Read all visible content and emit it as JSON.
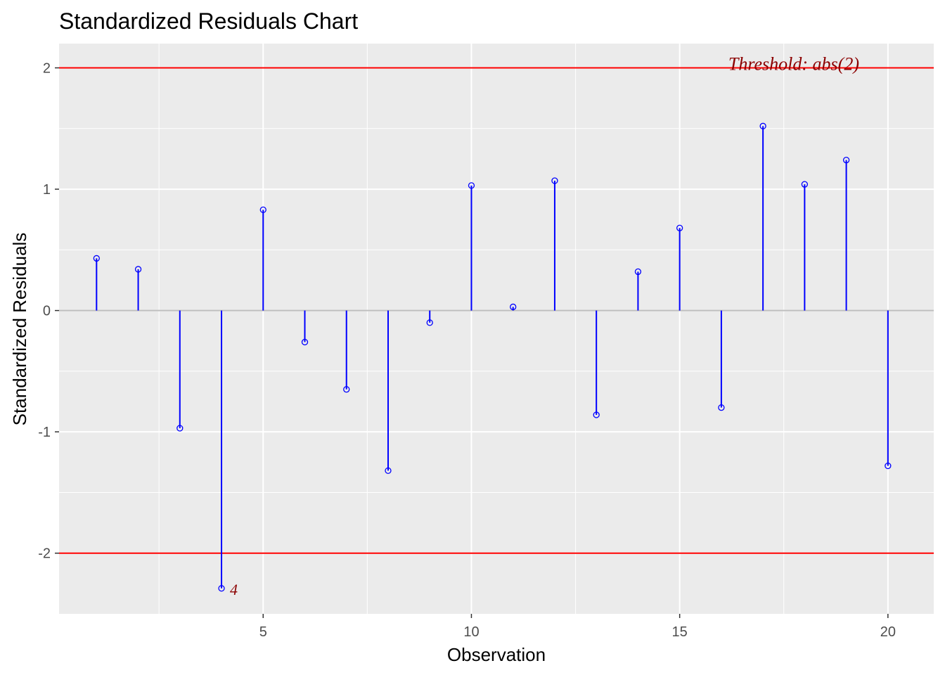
{
  "chart_data": {
    "type": "scatter",
    "title": "Standardized Residuals Chart",
    "xlabel": "Observation",
    "ylabel": "Standardized Residuals",
    "xlim": [
      0.1,
      21.1
    ],
    "ylim": [
      -2.5,
      2.2
    ],
    "x_ticks": [
      5,
      10,
      15,
      20
    ],
    "y_ticks": [
      -2,
      -1,
      0,
      1,
      2
    ],
    "grid": true,
    "threshold": {
      "value": 2,
      "label": "Threshold: abs(2)"
    },
    "observations": [
      1,
      2,
      3,
      4,
      5,
      6,
      7,
      8,
      9,
      10,
      11,
      12,
      13,
      14,
      15,
      16,
      17,
      18,
      19,
      20
    ],
    "residuals": [
      0.43,
      0.34,
      -0.97,
      -2.29,
      0.83,
      -0.26,
      -0.65,
      -1.32,
      -0.1,
      1.03,
      0.03,
      1.07,
      -0.86,
      0.32,
      0.68,
      -0.8,
      1.52,
      1.04,
      1.24,
      -1.28
    ],
    "outlier_labels": [
      {
        "x": 4,
        "y": -2.29,
        "label": "4"
      }
    ],
    "colors": {
      "panel": "#ebebeb",
      "grid": "#ffffff",
      "stem": "#0000ff",
      "threshold_line": "#ff0000",
      "threshold_text": "#8b0000",
      "zero_line": "#bebebe"
    }
  }
}
